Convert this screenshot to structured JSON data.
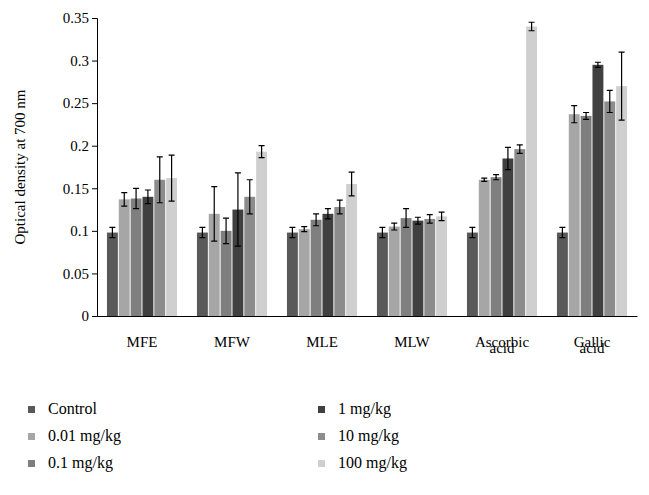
{
  "chart_data": {
    "type": "bar",
    "y_label": "Optical density at 700 nm",
    "categories": [
      "MFE",
      "MFW",
      "MLE",
      "MLW",
      "Ascorbic acid",
      "Gallic acid"
    ],
    "ylim": [
      0,
      0.35
    ],
    "yticks": [
      0,
      0.05,
      0.1,
      0.15,
      0.2,
      0.25,
      0.3,
      0.35
    ],
    "grid": false,
    "legend": "bottom",
    "series": [
      {
        "name": "Control",
        "color": "#595959",
        "values": [
          0.098,
          0.098,
          0.098,
          0.098,
          0.098,
          0.098
        ],
        "errors": [
          0.006,
          0.006,
          0.006,
          0.006,
          0.006,
          0.006
        ]
      },
      {
        "name": "0.01 mg/kg",
        "color": "#a6a6a6",
        "values": [
          0.137,
          0.12,
          0.102,
          0.105,
          0.16,
          0.237
        ],
        "errors": [
          0.008,
          0.032,
          0.003,
          0.004,
          0.002,
          0.01
        ]
      },
      {
        "name": "0.1 mg/kg",
        "color": "#7f7f7f",
        "values": [
          0.138,
          0.1,
          0.113,
          0.115,
          0.163,
          0.235
        ],
        "errors": [
          0.012,
          0.015,
          0.007,
          0.011,
          0.003,
          0.004
        ]
      },
      {
        "name": "1 mg/kg",
        "color": "#404040",
        "values": [
          0.14,
          0.125,
          0.12,
          0.112,
          0.185,
          0.295
        ],
        "errors": [
          0.008,
          0.043,
          0.006,
          0.004,
          0.013,
          0.003
        ]
      },
      {
        "name": "10 mg/kg",
        "color": "#8c8c8c",
        "values": [
          0.16,
          0.14,
          0.128,
          0.114,
          0.196,
          0.252
        ],
        "errors": [
          0.027,
          0.02,
          0.008,
          0.005,
          0.005,
          0.013
        ]
      },
      {
        "name": "100 mg/kg",
        "color": "#cfcfcf",
        "values": [
          0.162,
          0.193,
          0.155,
          0.117,
          0.34,
          0.27
        ],
        "errors": [
          0.027,
          0.007,
          0.014,
          0.005,
          0.005,
          0.04
        ]
      }
    ]
  }
}
